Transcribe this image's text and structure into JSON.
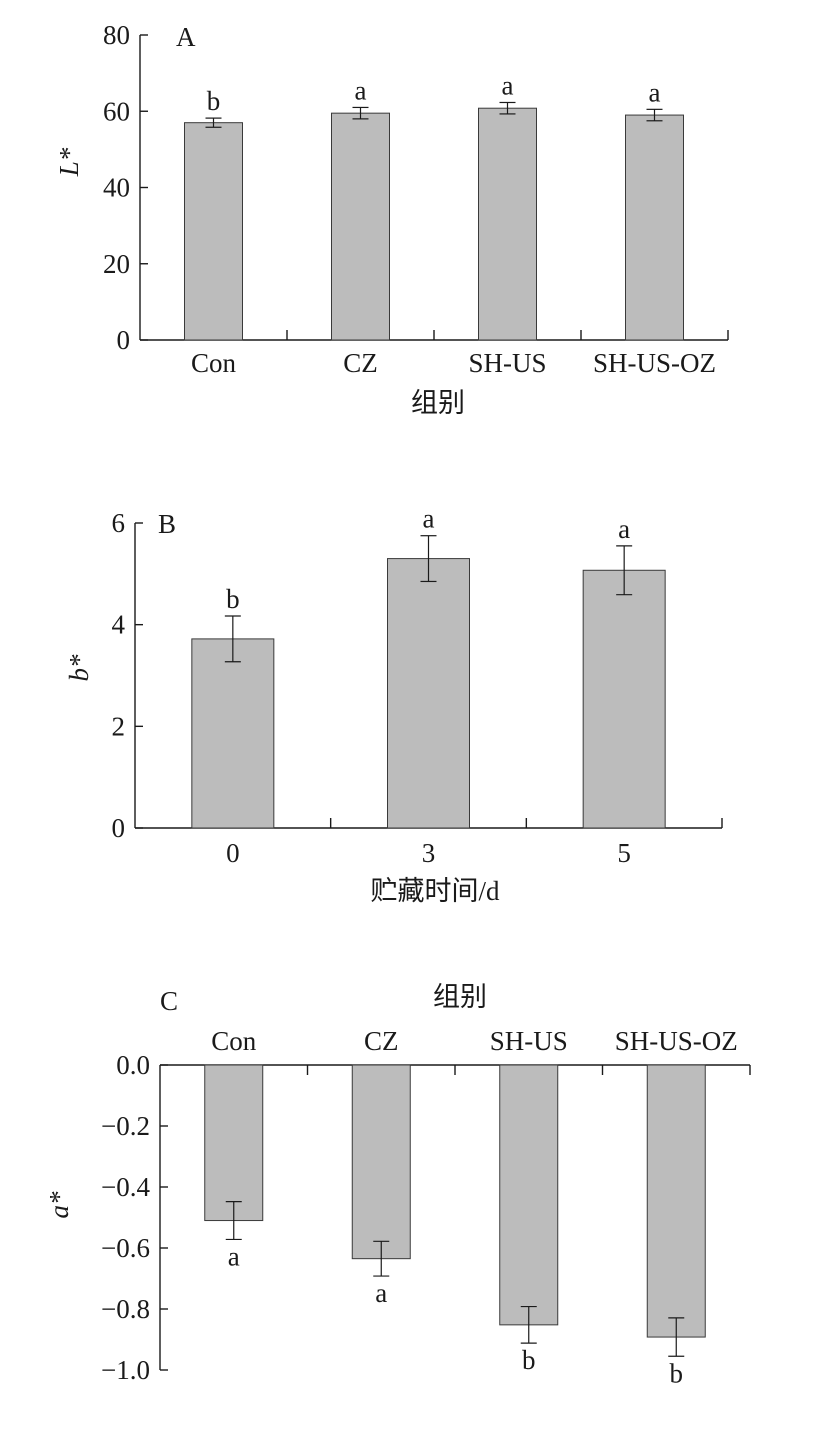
{
  "chart_data": [
    {
      "type": "bar",
      "panel_label": "A",
      "categories": [
        "Con",
        "CZ",
        "SH-US",
        "SH-US-OZ"
      ],
      "values": [
        57.0,
        59.5,
        60.8,
        59.0
      ],
      "errors": [
        1.2,
        1.5,
        1.5,
        1.5
      ],
      "significance": [
        "b",
        "a",
        "a",
        "a"
      ],
      "ylabel": "L*",
      "xlabel": "组别",
      "ylim": [
        0,
        80
      ],
      "yticks": [
        "0",
        "20",
        "40",
        "60",
        "80"
      ]
    },
    {
      "type": "bar",
      "panel_label": "B",
      "categories": [
        "0",
        "3",
        "5"
      ],
      "values": [
        3.72,
        5.3,
        5.07
      ],
      "errors": [
        0.45,
        0.45,
        0.48
      ],
      "significance": [
        "b",
        "a",
        "a"
      ],
      "ylabel": "b*",
      "xlabel": "贮藏时间/d",
      "ylim": [
        0,
        6
      ],
      "yticks": [
        "0",
        "2",
        "4",
        "6"
      ]
    },
    {
      "type": "bar",
      "panel_label": "C",
      "categories": [
        "Con",
        "CZ",
        "SH-US",
        "SH-US-OZ"
      ],
      "values": [
        -0.51,
        -0.635,
        -0.852,
        -0.892
      ],
      "errors": [
        0.062,
        0.057,
        0.06,
        0.063
      ],
      "significance": [
        "a",
        "a",
        "b",
        "b"
      ],
      "ylabel": "a*",
      "xlabel": "组别",
      "ylim": [
        -1.0,
        0.0
      ],
      "yticks": [
        "0.0",
        "−0.2",
        "−0.4",
        "−0.6",
        "−0.8",
        "−1.0"
      ]
    }
  ]
}
